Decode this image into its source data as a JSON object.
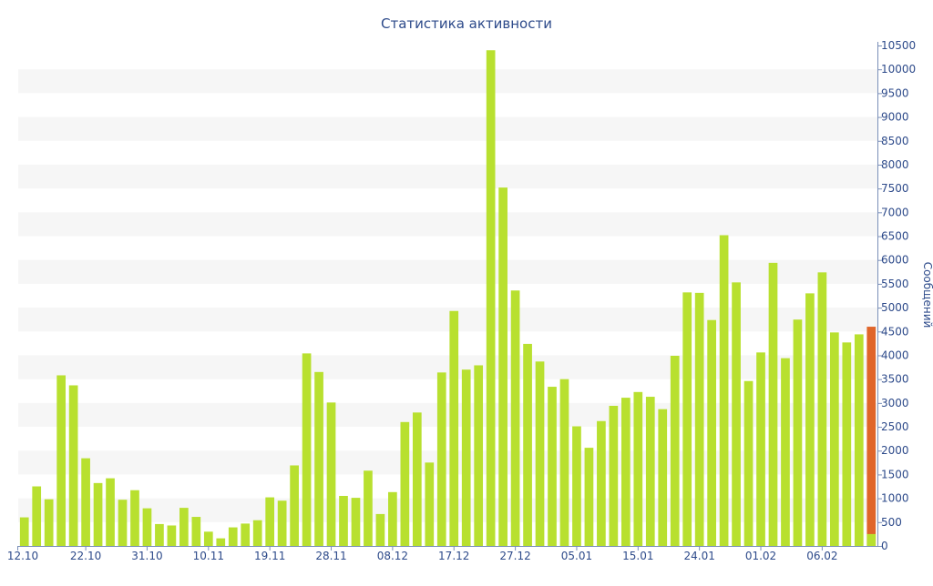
{
  "chart_data": {
    "type": "bar",
    "title": "Статистика активности",
    "ylabel": "Сообщений",
    "xlabel": "",
    "ylim": [
      0,
      10500
    ],
    "y_ticks": [
      0,
      500,
      1000,
      1500,
      2000,
      2500,
      3000,
      3500,
      4000,
      4500,
      5000,
      5500,
      6000,
      6500,
      7000,
      7500,
      8000,
      8500,
      9000,
      9500,
      10000,
      10500
    ],
    "y_axis_side": "right",
    "x_tick_labels": [
      {
        "index": 0,
        "label": "12.10"
      },
      {
        "index": 5,
        "label": "22.10"
      },
      {
        "index": 10,
        "label": "31.10"
      },
      {
        "index": 15,
        "label": "10.11"
      },
      {
        "index": 20,
        "label": "19.11"
      },
      {
        "index": 25,
        "label": "28.11"
      },
      {
        "index": 30,
        "label": "08.12"
      },
      {
        "index": 35,
        "label": "17.12"
      },
      {
        "index": 40,
        "label": "27.12"
      },
      {
        "index": 45,
        "label": "05.01"
      },
      {
        "index": 50,
        "label": "15.01"
      },
      {
        "index": 55,
        "label": "24.01"
      },
      {
        "index": 60,
        "label": "01.02"
      },
      {
        "index": 65,
        "label": "06.02"
      }
    ],
    "values": [
      600,
      1250,
      980,
      3580,
      3370,
      1840,
      1320,
      1420,
      970,
      1170,
      790,
      460,
      430,
      800,
      610,
      300,
      160,
      390,
      470,
      540,
      1020,
      950,
      1690,
      4040,
      3650,
      3010,
      1050,
      1010,
      1580,
      670,
      1130,
      2600,
      2800,
      1750,
      3640,
      4930,
      3700,
      3790,
      10400,
      7520,
      5360,
      4240,
      3870,
      3340,
      3500,
      2510,
      2060,
      2620,
      2940,
      3110,
      3230,
      3130,
      2870,
      3990,
      5320,
      5310,
      4740,
      6520,
      5530,
      3460,
      4060,
      5940,
      3940,
      4750,
      5300,
      5740,
      4480,
      4270,
      4440,
      4600
    ],
    "highlight_last": true,
    "bar_color": "#b8e02f",
    "highlight_color": "#e0652a",
    "grid_band_color": "#f6f6f6",
    "axis_text_color": "#2d4a8a",
    "grid": true,
    "legend": "none"
  }
}
